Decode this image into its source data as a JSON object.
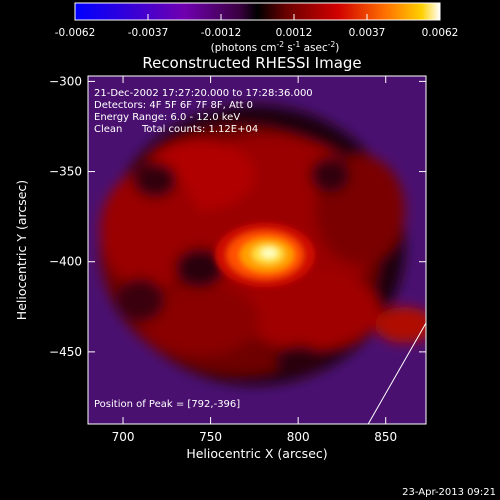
{
  "colorbar": {
    "tick_labels": [
      "-0.0062",
      "-0.0037",
      "-0.0012",
      "0.0012",
      "0.0037",
      "0.0062"
    ],
    "unit_label": "(photons cm",
    "unit_sup1": "-2",
    "unit_mid": " s",
    "unit_sup2": "-1",
    "unit_end": " asec",
    "unit_sup3": "-2",
    "unit_close": ")",
    "range": [
      -0.0062,
      0.0062
    ]
  },
  "info": {
    "time_range": "21-Dec-2002 17:27:20.000 to 17:28:36.000",
    "detectors": "Detectors: 4F 5F 6F 7F 8F, Att 0",
    "energy": "Energy Range: 6.0 - 12.0 keV",
    "method": "Clean",
    "counts": "Total counts: 1.12E+04",
    "peak": "Position of Peak = [792,-396]"
  },
  "footer": {
    "date": "23-Apr-2013 09:21"
  },
  "chart_data": {
    "type": "heatmap",
    "title": "Reconstructed RHESSI Image",
    "xlabel": "Heliocentric X (arcsec)",
    "ylabel": "Heliocentric Y (arcsec)",
    "xlim": [
      680,
      873
    ],
    "ylim": [
      -490,
      -297
    ],
    "xticks": [
      700,
      750,
      800,
      850
    ],
    "yticks": [
      -300,
      -350,
      -400,
      -450
    ],
    "peak": [
      792,
      -396
    ],
    "colormap": [
      "#0000ff",
      "#3a00d0",
      "#7a00a0",
      "#000000",
      "#8b0000",
      "#d00000",
      "#ff3000",
      "#ff8c00",
      "#ffd000",
      "#ffffff"
    ],
    "limb_line": [
      [
        840,
        -490
      ],
      [
        873,
        -434
      ]
    ]
  }
}
